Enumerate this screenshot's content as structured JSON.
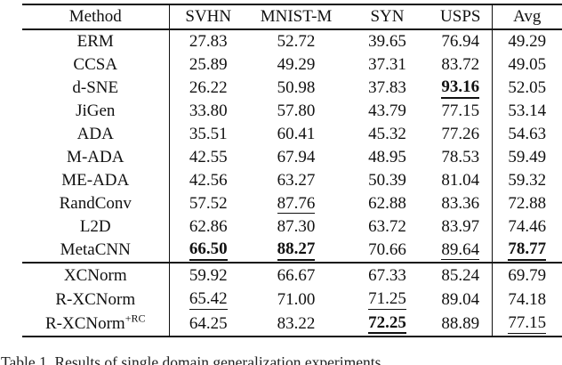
{
  "page": {
    "background": "#ffffff",
    "text_color": "#111111",
    "rule_color": "#111111"
  },
  "caption": "Table 1.  Results of single domain generalization experiments.",
  "table": {
    "columns": [
      "Method",
      "SVHN",
      "MNIST-M",
      "SYN",
      "USPS",
      "Avg"
    ],
    "style_codes": {
      "": "plain",
      "u": "underlined (second best)",
      "bu": "bold underlined (best)"
    },
    "sections": [
      {
        "name": "baseline-methods",
        "rows": [
          {
            "method": "ERM",
            "sup": "",
            "cells": [
              {
                "v": "27.83",
                "s": ""
              },
              {
                "v": "52.72",
                "s": ""
              },
              {
                "v": "39.65",
                "s": ""
              },
              {
                "v": "76.94",
                "s": ""
              },
              {
                "v": "49.29",
                "s": ""
              }
            ]
          },
          {
            "method": "CCSA",
            "sup": "",
            "cells": [
              {
                "v": "25.89",
                "s": ""
              },
              {
                "v": "49.29",
                "s": ""
              },
              {
                "v": "37.31",
                "s": ""
              },
              {
                "v": "83.72",
                "s": ""
              },
              {
                "v": "49.05",
                "s": ""
              }
            ]
          },
          {
            "method": "d-SNE",
            "sup": "",
            "cells": [
              {
                "v": "26.22",
                "s": ""
              },
              {
                "v": "50.98",
                "s": ""
              },
              {
                "v": "37.83",
                "s": ""
              },
              {
                "v": "93.16",
                "s": "bu"
              },
              {
                "v": "52.05",
                "s": ""
              }
            ]
          },
          {
            "method": "JiGen",
            "sup": "",
            "cells": [
              {
                "v": "33.80",
                "s": ""
              },
              {
                "v": "57.80",
                "s": ""
              },
              {
                "v": "43.79",
                "s": ""
              },
              {
                "v": "77.15",
                "s": ""
              },
              {
                "v": "53.14",
                "s": ""
              }
            ]
          },
          {
            "method": "ADA",
            "sup": "",
            "cells": [
              {
                "v": "35.51",
                "s": ""
              },
              {
                "v": "60.41",
                "s": ""
              },
              {
                "v": "45.32",
                "s": ""
              },
              {
                "v": "77.26",
                "s": ""
              },
              {
                "v": "54.63",
                "s": ""
              }
            ]
          },
          {
            "method": "M-ADA",
            "sup": "",
            "cells": [
              {
                "v": "42.55",
                "s": ""
              },
              {
                "v": "67.94",
                "s": ""
              },
              {
                "v": "48.95",
                "s": ""
              },
              {
                "v": "78.53",
                "s": ""
              },
              {
                "v": "59.49",
                "s": ""
              }
            ]
          },
          {
            "method": "ME-ADA",
            "sup": "",
            "cells": [
              {
                "v": "42.56",
                "s": ""
              },
              {
                "v": "63.27",
                "s": ""
              },
              {
                "v": "50.39",
                "s": ""
              },
              {
                "v": "81.04",
                "s": ""
              },
              {
                "v": "59.32",
                "s": ""
              }
            ]
          },
          {
            "method": "RandConv",
            "sup": "",
            "cells": [
              {
                "v": "57.52",
                "s": ""
              },
              {
                "v": "87.76",
                "s": "u"
              },
              {
                "v": "62.88",
                "s": ""
              },
              {
                "v": "83.36",
                "s": ""
              },
              {
                "v": "72.88",
                "s": ""
              }
            ]
          },
          {
            "method": "L2D",
            "sup": "",
            "cells": [
              {
                "v": "62.86",
                "s": ""
              },
              {
                "v": "87.30",
                "s": ""
              },
              {
                "v": "63.72",
                "s": ""
              },
              {
                "v": "83.97",
                "s": ""
              },
              {
                "v": "74.46",
                "s": ""
              }
            ]
          },
          {
            "method": "MetaCNN",
            "sup": "",
            "cells": [
              {
                "v": "66.50",
                "s": "bu"
              },
              {
                "v": "88.27",
                "s": "bu"
              },
              {
                "v": "70.66",
                "s": ""
              },
              {
                "v": "89.64",
                "s": "u"
              },
              {
                "v": "78.77",
                "s": "bu"
              }
            ]
          }
        ]
      },
      {
        "name": "proposed-methods",
        "rows": [
          {
            "method": "XCNorm",
            "sup": "",
            "cells": [
              {
                "v": "59.92",
                "s": ""
              },
              {
                "v": "66.67",
                "s": ""
              },
              {
                "v": "67.33",
                "s": ""
              },
              {
                "v": "85.24",
                "s": ""
              },
              {
                "v": "69.79",
                "s": ""
              }
            ]
          },
          {
            "method": "R-XCNorm",
            "sup": "",
            "cells": [
              {
                "v": "65.42",
                "s": "u"
              },
              {
                "v": "71.00",
                "s": ""
              },
              {
                "v": "71.25",
                "s": "u"
              },
              {
                "v": "89.04",
                "s": ""
              },
              {
                "v": "74.18",
                "s": ""
              }
            ]
          },
          {
            "method": "R-XCNorm",
            "sup": "+RC",
            "cells": [
              {
                "v": "64.25",
                "s": ""
              },
              {
                "v": "83.22",
                "s": ""
              },
              {
                "v": "72.25",
                "s": "bu"
              },
              {
                "v": "88.89",
                "s": ""
              },
              {
                "v": "77.15",
                "s": "u"
              }
            ]
          }
        ]
      }
    ]
  }
}
